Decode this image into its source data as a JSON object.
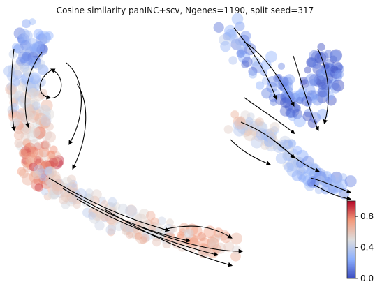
{
  "chart_data": {
    "type": "scatter",
    "title": "Cosine similarity panINC+scv, Ngenes=1190, split seed=317",
    "xlabel": "",
    "ylabel": "",
    "axes": "off",
    "overlay": "velocity streamlines with arrowheads",
    "colorbar": {
      "colormap": "coolwarm",
      "range": [
        0.0,
        1.0
      ],
      "ticks": [
        0.0,
        0.4,
        0.8
      ],
      "tick_labels": [
        "0.0",
        "0.4",
        "0.8"
      ]
    },
    "colors": {
      "low": "#3b4cc0",
      "mid": "#dddddd",
      "high": "#b40426",
      "stream": "#000000"
    },
    "clusters": [
      {
        "name": "",
        "mean_value": 0.25
      },
      {
        "name": "",
        "mean_value": 0.55
      },
      {
        "name": "",
        "mean_value": 0.88
      }
    ]
  }
}
